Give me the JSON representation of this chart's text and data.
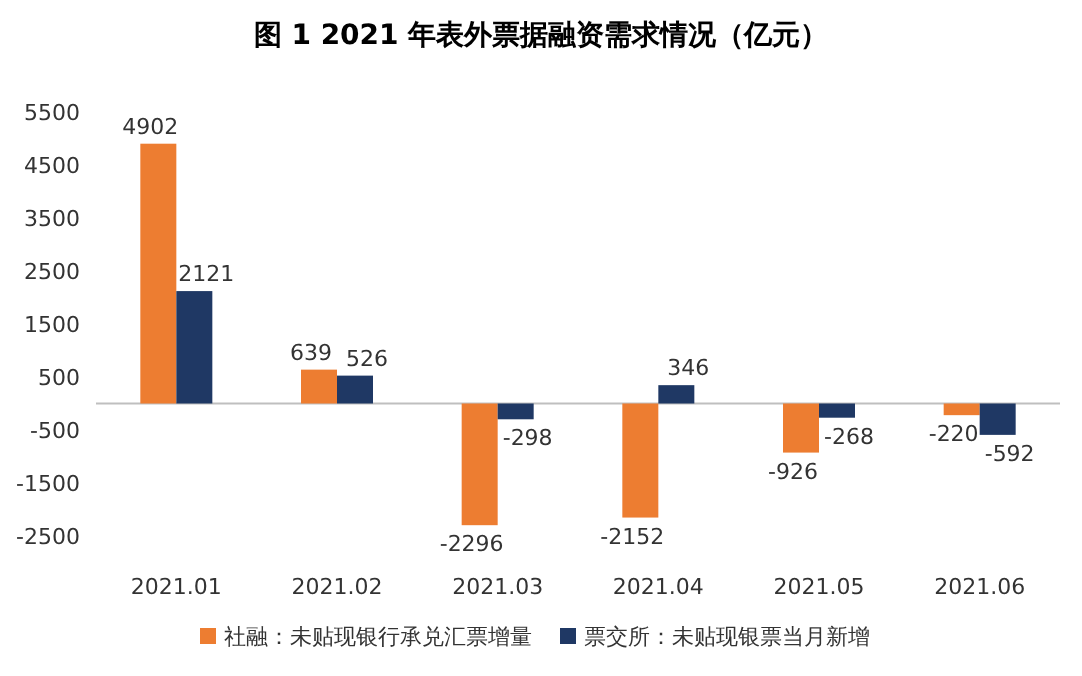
{
  "chart_data": {
    "type": "bar",
    "title": "图 1 2021 年表外票据融资需求情况（亿元）",
    "categories": [
      "2021.01",
      "2021.02",
      "2021.03",
      "2021.04",
      "2021.05",
      "2021.06"
    ],
    "series": [
      {
        "name": "社融：未贴现银行承兑汇票增量",
        "color": "#ed7d31",
        "values": [
          4902,
          639,
          -2296,
          -2152,
          -926,
          -220
        ]
      },
      {
        "name": "票交所：未贴现银票当月新增",
        "color": "#1f3864",
        "values": [
          2121,
          526,
          -298,
          346,
          -268,
          -592
        ]
      }
    ],
    "ylim": [
      -2500,
      5500
    ],
    "yticks": [
      -2500,
      -1500,
      -500,
      500,
      1500,
      2500,
      3500,
      4500,
      5500
    ],
    "data_labels": true,
    "grid": false,
    "legend": "bottom"
  }
}
